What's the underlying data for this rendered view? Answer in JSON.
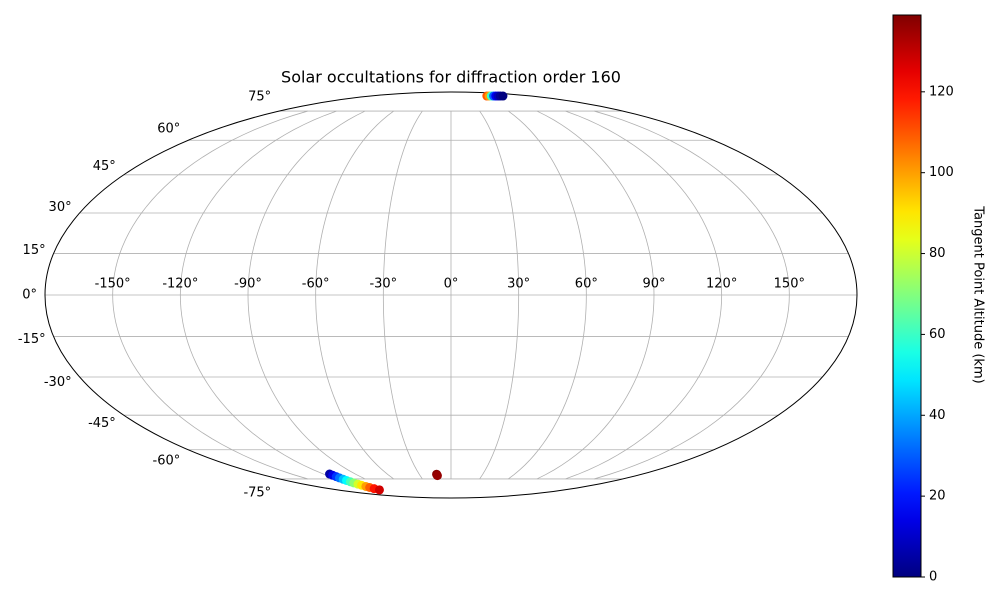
{
  "chart_data": {
    "type": "scatter",
    "projection": "mollweide",
    "title": "Solar occultations for diffraction order 160",
    "x": [
      -114.2,
      -114.1,
      -114.0,
      -114.0,
      -113.9,
      -113.9,
      -113.8,
      -113.8,
      -113.7,
      -113.7,
      -113.6,
      -113.6,
      -113.6,
      -113.5,
      80,
      85,
      90,
      95,
      100,
      105,
      110,
      116,
      -13.4,
      -13.6,
      -13.2
    ],
    "y": [
      -72.2,
      -72.9,
      -73.7,
      -74.4,
      -75.2,
      -75.9,
      -76.7,
      -77.4,
      -78.2,
      -78.9,
      -79.7,
      -80.4,
      -81.2,
      -82.1,
      85.3,
      85.3,
      85.3,
      85.3,
      85.3,
      85.3,
      85.3,
      85.3,
      -72.7,
      -72.3,
      -73.1
    ],
    "values": [
      5,
      14,
      24,
      33,
      43,
      52,
      62,
      71,
      81,
      90,
      100,
      109,
      119,
      128,
      110,
      100,
      60,
      30,
      15,
      8,
      3,
      0,
      139,
      138,
      136
    ],
    "colormap": "jet",
    "clim": [
      0,
      139
    ],
    "colorbar_label": "Tangent Point Altitude (km)",
    "cticks": [
      0,
      20,
      40,
      60,
      80,
      100,
      120
    ],
    "grid": true,
    "xticks": [
      {
        "value": -150,
        "label": "-150°"
      },
      {
        "value": -120,
        "label": "-120°"
      },
      {
        "value": -90,
        "label": "-90°"
      },
      {
        "value": -60,
        "label": "-60°"
      },
      {
        "value": -30,
        "label": "-30°"
      },
      {
        "value": 0,
        "label": "0°"
      },
      {
        "value": 30,
        "label": "30°"
      },
      {
        "value": 60,
        "label": "60°"
      },
      {
        "value": 90,
        "label": "90°"
      },
      {
        "value": 120,
        "label": "120°"
      },
      {
        "value": 150,
        "label": "150°"
      }
    ],
    "yticks": [
      {
        "value": -75,
        "label": "-75°"
      },
      {
        "value": -60,
        "label": "-60°"
      },
      {
        "value": -45,
        "label": "-45°"
      },
      {
        "value": -30,
        "label": "-30°"
      },
      {
        "value": -15,
        "label": "-15°"
      },
      {
        "value": 0,
        "label": "0°"
      },
      {
        "value": 15,
        "label": "15°"
      },
      {
        "value": 30,
        "label": "30°"
      },
      {
        "value": 45,
        "label": "45°"
      },
      {
        "value": 60,
        "label": "60°"
      },
      {
        "value": 75,
        "label": "75°"
      }
    ]
  }
}
